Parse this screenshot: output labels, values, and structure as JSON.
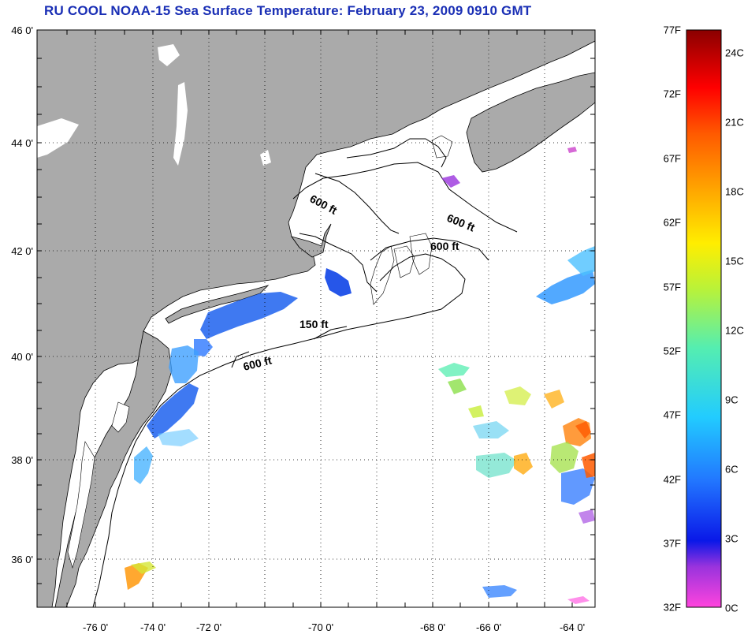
{
  "title": "RU COOL  NOAA-15  Sea Surface Temperature:  February 23, 2009 0910 GMT",
  "map": {
    "latitude_labels": [
      "46 0'",
      "44 0'",
      "42 0'",
      "40 0'",
      "38 0'",
      "36 0'"
    ],
    "longitude_labels": [
      "-76 0'",
      "-74 0'",
      "-72 0'",
      "-70 0'",
      "-68 0'",
      "-66 0'",
      "-64 0'"
    ],
    "contour_labels": [
      "600 ft",
      "600 ft",
      "600 ft",
      "150 ft",
      "600 ft"
    ],
    "land_color": "#aaaaaa",
    "water_color": "#ffffff",
    "graticule": "dotted"
  },
  "colorbar": {
    "fahrenheit_labels": [
      "77F",
      "72F",
      "67F",
      "62F",
      "57F",
      "52F",
      "47F",
      "42F",
      "37F",
      "32F"
    ],
    "celsius_labels": [
      "24C",
      "21C",
      "18C",
      "15C",
      "12C",
      "9C",
      "6C",
      "3C",
      "0C"
    ],
    "colors_bottom_to_top": [
      "#ff44dd",
      "#9a33dd",
      "#0a18e8",
      "#2277ff",
      "#22ccff",
      "#55eeb0",
      "#b8f23a",
      "#ffee00",
      "#ffa800",
      "#ff5a00",
      "#ff0000",
      "#8a0000"
    ]
  }
}
